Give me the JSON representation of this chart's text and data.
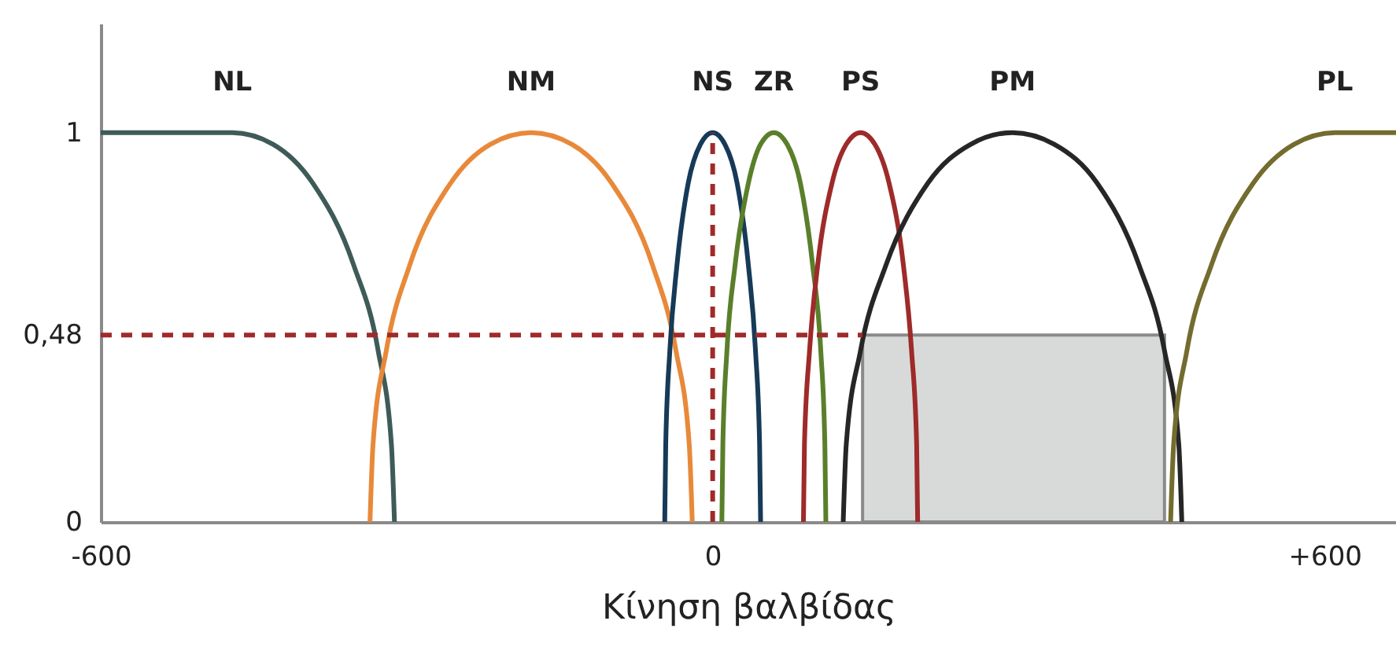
{
  "chart_data": {
    "type": "line",
    "xlabel": "Κίνηση βαλβίδας",
    "xlim": [
      -600,
      670
    ],
    "ylim": [
      0,
      1.28
    ],
    "xticks": [
      -600,
      0,
      {
        "value": 600,
        "label": "+600"
      }
    ],
    "yticks": [
      0,
      {
        "value": 0.48,
        "label": "0,48"
      },
      1
    ],
    "grid": false,
    "line_style": "solid",
    "series": [
      {
        "type": "area",
        "color": "#d8dada",
        "x": [
          147,
          443
        ],
        "values": [
          0.48,
          0.48
        ]
      },
      {
        "name": "NL",
        "color": "#3e5b58",
        "x": [
          -600,
          -471,
          -431,
          -392,
          -352,
          -328,
          -315,
          -312
        ],
        "values": [
          1,
          1,
          0.97,
          0.87,
          0.66,
          0.44,
          0.2,
          0
        ]
      },
      {
        "name": "NM",
        "color": "#e8893a",
        "x": [
          -336,
          -333,
          -320,
          -297,
          -257,
          -218,
          -178,
          -138,
          -99,
          -59,
          -36,
          -23,
          -20
        ],
        "values": [
          0,
          0.2,
          0.44,
          0.66,
          0.87,
          0.97,
          1,
          0.97,
          0.87,
          0.66,
          0.44,
          0.2,
          0
        ]
      },
      {
        "name": "NS",
        "color": "#163a58",
        "x": [
          -47,
          -46,
          -42,
          -35,
          -24,
          -12,
          0,
          12,
          24,
          35,
          42,
          46,
          47
        ],
        "values": [
          0,
          0.2,
          0.44,
          0.66,
          0.87,
          0.97,
          1,
          0.97,
          0.87,
          0.66,
          0.44,
          0.2,
          0
        ]
      },
      {
        "name": "ZR",
        "color": "#5a7f2a",
        "x": [
          9,
          10,
          14,
          22,
          35,
          47,
          60,
          73,
          86,
          98,
          106,
          110,
          111
        ],
        "values": [
          0,
          0.2,
          0.44,
          0.66,
          0.87,
          0.97,
          1,
          0.97,
          0.87,
          0.66,
          0.44,
          0.2,
          0
        ]
      },
      {
        "name": "PS",
        "color": "#9e2a2a",
        "x": [
          89,
          90,
          95,
          103,
          117,
          131,
          145,
          159,
          173,
          187,
          195,
          200,
          201
        ],
        "values": [
          0,
          0.2,
          0.44,
          0.66,
          0.87,
          0.97,
          1,
          0.97,
          0.87,
          0.66,
          0.44,
          0.2,
          0
        ]
      },
      {
        "name": "PM",
        "color": "#262626",
        "x": [
          128,
          131,
          145,
          170,
          211,
          253,
          294,
          335,
          377,
          418,
          443,
          457,
          460
        ],
        "values": [
          0,
          0.2,
          0.44,
          0.66,
          0.87,
          0.97,
          1,
          0.97,
          0.87,
          0.66,
          0.44,
          0.2,
          0
        ]
      },
      {
        "name": "PL",
        "color": "#736c2e",
        "x": [
          449,
          452,
          465,
          489,
          530,
          570,
          610,
          670
        ],
        "values": [
          0,
          0.2,
          0.44,
          0.66,
          0.87,
          0.97,
          1,
          1
        ]
      },
      {
        "type": "line",
        "line_style": "dashed",
        "color": "#a02a2a",
        "x": [
          0,
          0
        ],
        "values": [
          0,
          1
        ]
      },
      {
        "type": "line",
        "line_style": "dashed",
        "color": "#a02a2a",
        "x": [
          -600,
          147
        ],
        "values": [
          0.48,
          0.48
        ]
      }
    ]
  }
}
